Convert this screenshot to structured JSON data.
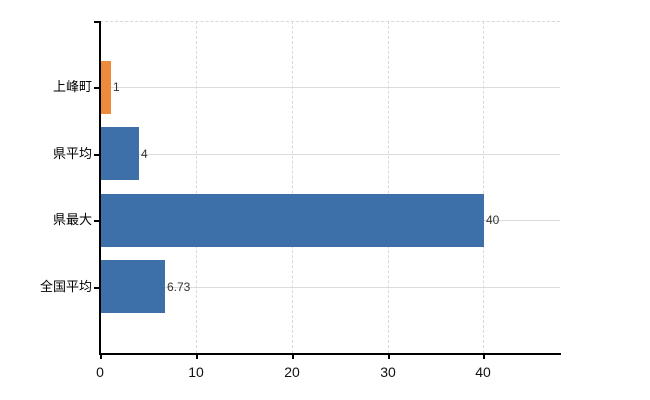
{
  "chart_data": {
    "type": "bar",
    "orientation": "horizontal",
    "title": "",
    "xlabel": "",
    "ylabel": "",
    "categories": [
      "上峰町",
      "県平均",
      "県最大",
      "全国平均"
    ],
    "values": [
      1,
      4,
      40,
      6.73
    ],
    "value_labels": [
      "1",
      "4",
      "40",
      "6.73"
    ],
    "bar_colors": [
      "#ec8b3b",
      "#3d6fa8",
      "#3d6fa8",
      "#3d6fa8"
    ],
    "x_ticks": [
      0,
      10,
      20,
      30,
      40
    ],
    "x_tick_labels": [
      "0",
      "10",
      "20",
      "30",
      "40"
    ],
    "xlim": [
      0,
      48
    ],
    "grid": {
      "horizontal": "solid",
      "vertical": "dashed",
      "top_border": "dashed"
    },
    "legend_position": "none"
  },
  "colors": {
    "bar_blue": "#3d6fa8",
    "bar_orange": "#ec8b3b",
    "axis": "#000000",
    "hgrid": "#d6ded6",
    "vgrid": "#d8d8d8",
    "tick_text": "#111111",
    "value_text": "#333333",
    "background": "#ffffff"
  }
}
